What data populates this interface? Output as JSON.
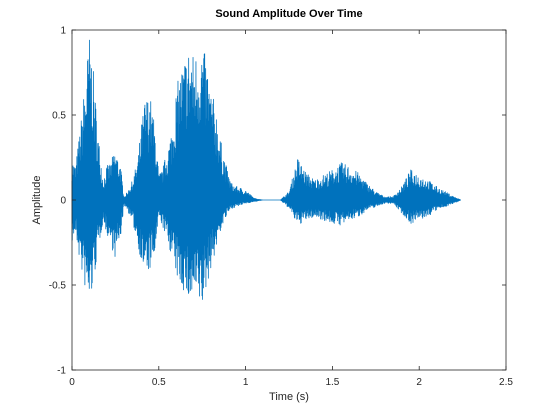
{
  "chart_data": {
    "type": "line",
    "title": "Sound Amplitude Over Time",
    "xlabel": "Time (s)",
    "ylabel": "Amplitude",
    "xlim": [
      0,
      2.5
    ],
    "ylim": [
      -1,
      1
    ],
    "xticks": [
      "0",
      "0.5",
      "1",
      "1.5",
      "2",
      "2.5"
    ],
    "xtick_values": [
      0,
      0.5,
      1,
      1.5,
      2,
      2.5
    ],
    "yticks": [
      "-1",
      "-0.5",
      "0",
      "0.5",
      "1"
    ],
    "ytick_values": [
      -1,
      -0.5,
      0,
      0.5,
      1
    ],
    "grid": false,
    "series": [
      {
        "color": "#0072BD",
        "envelope_time": [
          0,
          0.02,
          0.05,
          0.08,
          0.1,
          0.12,
          0.15,
          0.18,
          0.2,
          0.22,
          0.25,
          0.28,
          0.3,
          0.32,
          0.35,
          0.38,
          0.4,
          0.42,
          0.45,
          0.48,
          0.5,
          0.52,
          0.55,
          0.58,
          0.6,
          0.62,
          0.65,
          0.68,
          0.7,
          0.72,
          0.75,
          0.78,
          0.8,
          0.83,
          0.85,
          0.88,
          0.9,
          0.92,
          0.95,
          1.0,
          1.05,
          1.1,
          1.15,
          1.2,
          1.25,
          1.3,
          1.35,
          1.4,
          1.45,
          1.5,
          1.55,
          1.6,
          1.65,
          1.7,
          1.75,
          1.8,
          1.85,
          1.9,
          1.95,
          2.0,
          2.05,
          2.1,
          2.15,
          2.2,
          2.24
        ],
        "envelope_upper": [
          0.25,
          0.2,
          0.45,
          0.75,
          0.98,
          0.8,
          0.4,
          0.12,
          0.2,
          0.22,
          0.3,
          0.2,
          0.02,
          0.05,
          0.12,
          0.25,
          0.45,
          0.6,
          0.62,
          0.42,
          0.15,
          0.18,
          0.3,
          0.45,
          0.65,
          0.75,
          0.85,
          0.92,
          0.86,
          0.88,
          0.92,
          0.8,
          0.65,
          0.55,
          0.38,
          0.25,
          0.15,
          0.1,
          0.08,
          0.06,
          0.01,
          0.0,
          0.0,
          0.0,
          0.05,
          0.25,
          0.16,
          0.12,
          0.15,
          0.18,
          0.22,
          0.2,
          0.16,
          0.1,
          0.05,
          0.02,
          0.02,
          0.08,
          0.18,
          0.15,
          0.12,
          0.08,
          0.05,
          0.02,
          0.0
        ],
        "envelope_lower": [
          -0.25,
          -0.2,
          -0.4,
          -0.55,
          -0.63,
          -0.52,
          -0.3,
          -0.12,
          -0.2,
          -0.25,
          -0.35,
          -0.22,
          -0.03,
          -0.06,
          -0.14,
          -0.26,
          -0.38,
          -0.43,
          -0.42,
          -0.32,
          -0.1,
          -0.15,
          -0.25,
          -0.35,
          -0.45,
          -0.5,
          -0.55,
          -0.62,
          -0.58,
          -0.6,
          -0.64,
          -0.5,
          -0.4,
          -0.3,
          -0.2,
          -0.12,
          -0.08,
          -0.05,
          -0.04,
          -0.02,
          -0.01,
          0.0,
          0.0,
          0.0,
          -0.05,
          -0.15,
          -0.12,
          -0.1,
          -0.12,
          -0.14,
          -0.15,
          -0.12,
          -0.1,
          -0.06,
          -0.04,
          -0.02,
          -0.02,
          -0.08,
          -0.14,
          -0.12,
          -0.1,
          -0.06,
          -0.04,
          -0.02,
          0.0
        ]
      }
    ]
  }
}
